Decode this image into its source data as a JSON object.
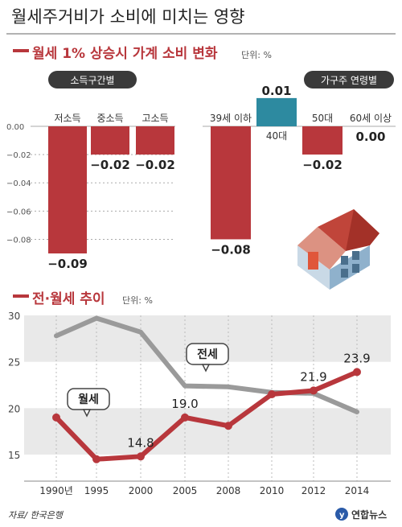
{
  "title": "월세주거비가 소비에 미치는 영향",
  "chart_data": [
    {
      "type": "bar",
      "title": "월세 1% 상승시 가계 소비 변화",
      "unit": "단위: %",
      "panels": [
        {
          "label": "소득구간별",
          "categories": [
            "저소득",
            "중소득",
            "고소득"
          ],
          "values": [
            -0.09,
            -0.02,
            -0.02
          ],
          "value_labels": [
            "−0.09",
            "−0.02",
            "−0.02"
          ]
        },
        {
          "label": "가구주 연령별",
          "categories": [
            "39세 이하",
            "40대",
            "50대",
            "60세 이상"
          ],
          "values": [
            -0.08,
            0.01,
            -0.02,
            0.0
          ],
          "value_labels": [
            "−0.08",
            "0.01",
            "−0.02",
            "0.00"
          ]
        }
      ],
      "ylim": [
        -0.09,
        0.0
      ],
      "yticks": [
        "0.00",
        "−0.02",
        "−0.04",
        "−0.06",
        "−0.08"
      ],
      "colors": {
        "negative": "#b8373c",
        "positive": "#2d8aa0"
      }
    },
    {
      "type": "line",
      "title": "전·월세 추이",
      "unit": "단위: %",
      "x": [
        "1990년",
        "1995",
        "2000",
        "2005",
        "2008",
        "2010",
        "2012",
        "2014"
      ],
      "series": [
        {
          "name": "전세",
          "values": [
            27.8,
            29.7,
            28.2,
            22.4,
            22.3,
            21.7,
            21.6,
            19.6
          ],
          "color": "#9a9a9a"
        },
        {
          "name": "월세",
          "values": [
            19.0,
            14.5,
            14.8,
            19.0,
            18.1,
            21.5,
            21.9,
            23.9
          ],
          "color": "#b8373c"
        }
      ],
      "data_labels": [
        {
          "series": "월세",
          "index": 2,
          "text": "14.8"
        },
        {
          "series": "월세",
          "index": 3,
          "text": "19.0"
        },
        {
          "series": "월세",
          "index": 6,
          "text": "21.9"
        },
        {
          "series": "월세",
          "index": 7,
          "text": "23.9"
        }
      ],
      "ylim": [
        13,
        30
      ],
      "yticks": [
        "30",
        "25",
        "20",
        "15"
      ]
    }
  ],
  "footer": {
    "source": "자료/ 한국은행",
    "brand": "연합뉴스"
  }
}
